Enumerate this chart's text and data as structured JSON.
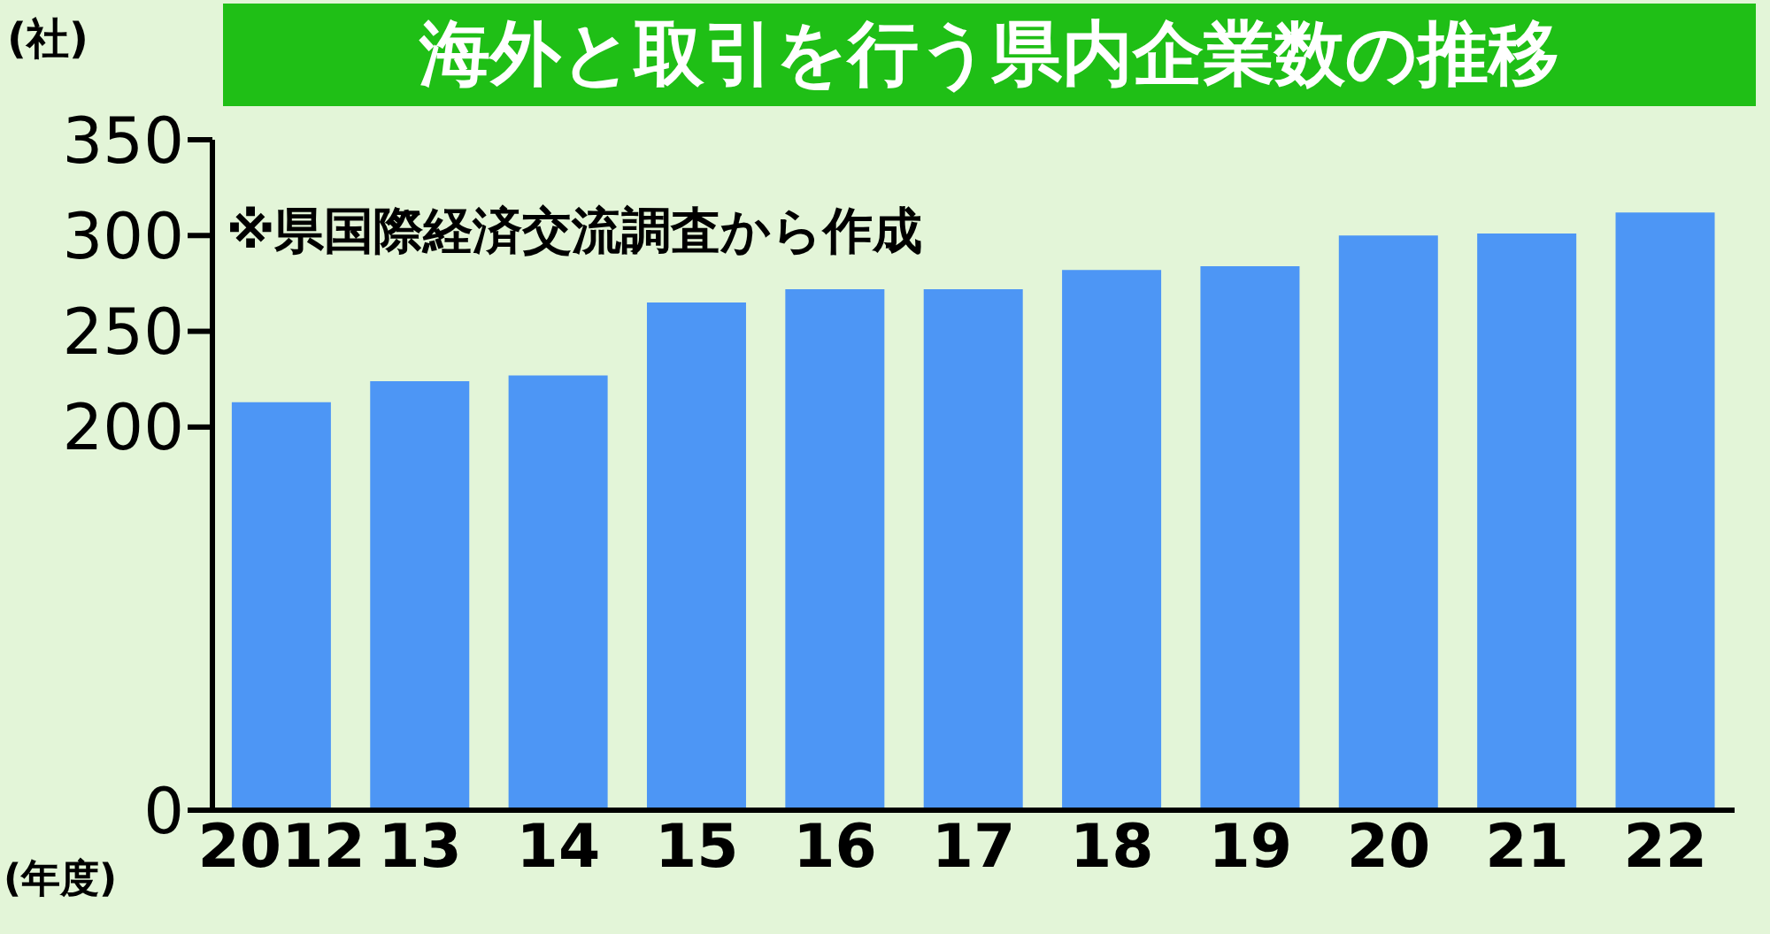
{
  "chart_data": {
    "type": "bar",
    "title": "海外と取引を行う県内企業数の推移",
    "ylabel": "(社)",
    "xlabel": "(年度)",
    "annotations": [
      "※県国際経済交流調査から作成"
    ],
    "categories": [
      "2012",
      "13",
      "14",
      "15",
      "16",
      "17",
      "18",
      "19",
      "20",
      "21",
      "22"
    ],
    "series": [
      {
        "color": "#4d96f5",
        "values": [
          213,
          224,
          227,
          265,
          272,
          272,
          282,
          284,
          300,
          301,
          312
        ]
      }
    ],
    "ylim": [
      0,
      350
    ],
    "yticks": [
      0,
      200,
      250,
      300,
      350
    ],
    "grid": false,
    "legend": false
  }
}
